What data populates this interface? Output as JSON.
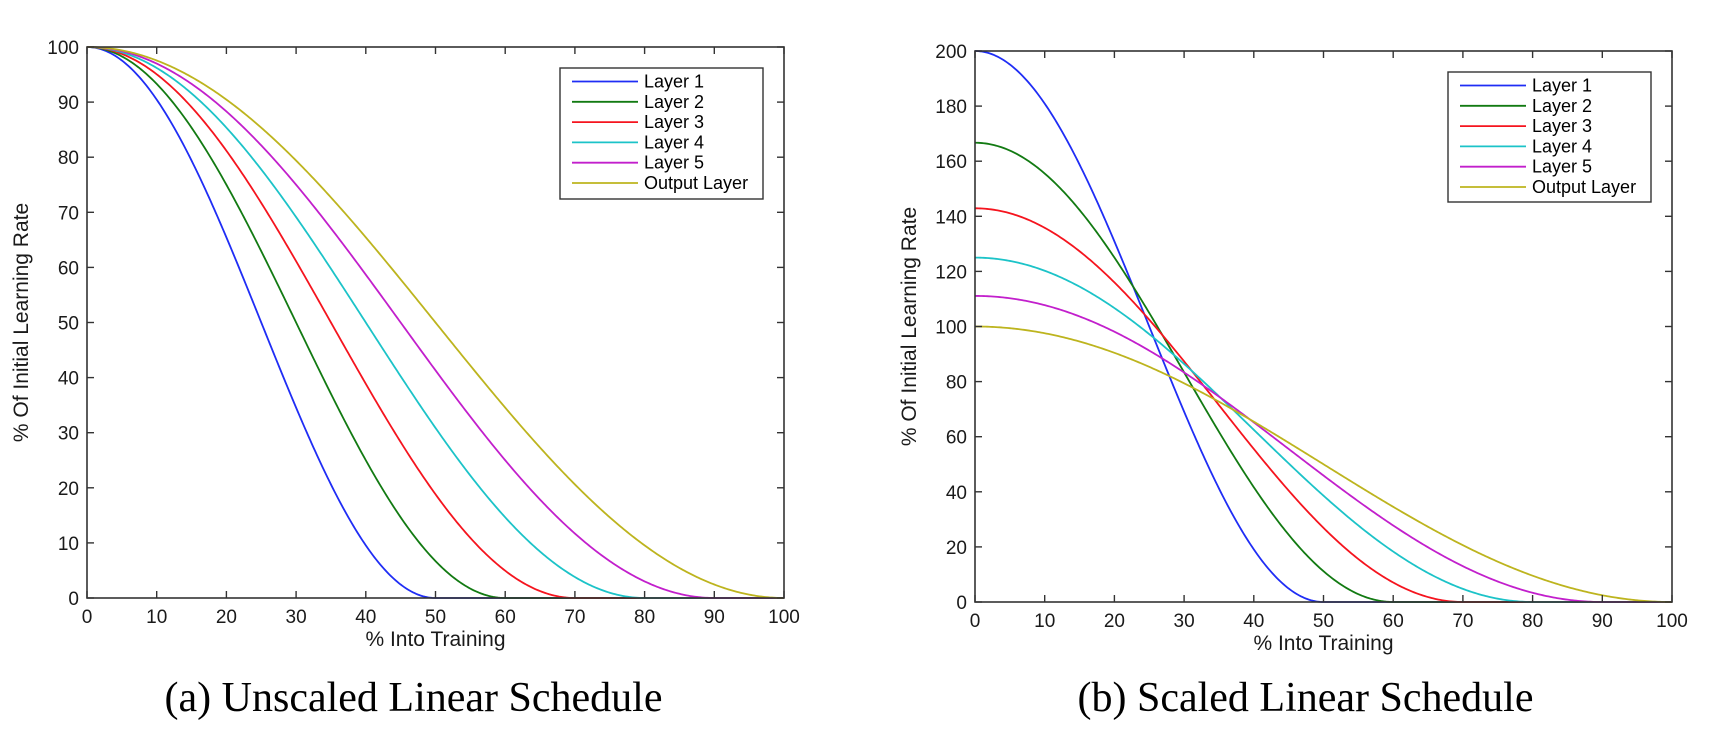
{
  "chart_data": [
    {
      "type": "line",
      "id": "unscaled",
      "caption": "(a) Unscaled Linear Schedule",
      "xlabel": "% Into Training",
      "ylabel": "% Of Initial Learning Rate",
      "xlim": [
        0,
        100
      ],
      "ylim": [
        0,
        100
      ],
      "xticks": [
        0,
        10,
        20,
        30,
        40,
        50,
        60,
        70,
        80,
        90,
        100
      ],
      "yticks": [
        0,
        10,
        20,
        30,
        40,
        50,
        60,
        70,
        80,
        90,
        100
      ],
      "grid": false,
      "legend_position": "top-right",
      "curve_form": "y = peak/2 * (1 + cos(pi * x / end)) for x <= end, else 0",
      "series": [
        {
          "name": "Layer 1",
          "color": "#1f2df5",
          "peak": 100,
          "end": 50
        },
        {
          "name": "Layer 2",
          "color": "#127a12",
          "peak": 100,
          "end": 60
        },
        {
          "name": "Layer 3",
          "color": "#f5141e",
          "peak": 100,
          "end": 70
        },
        {
          "name": "Layer 4",
          "color": "#1cc3c8",
          "peak": 100,
          "end": 80
        },
        {
          "name": "Layer 5",
          "color": "#c21fcc",
          "peak": 100,
          "end": 90
        },
        {
          "name": "Output Layer",
          "color": "#bdb41e",
          "peak": 100,
          "end": 100
        }
      ]
    },
    {
      "type": "line",
      "id": "scaled",
      "caption": "(b) Scaled Linear Schedule",
      "xlabel": "% Into Training",
      "ylabel": "% Of Initial Learning Rate",
      "xlim": [
        0,
        100
      ],
      "ylim": [
        0,
        200
      ],
      "xticks": [
        0,
        10,
        20,
        30,
        40,
        50,
        60,
        70,
        80,
        90,
        100
      ],
      "yticks": [
        0,
        20,
        40,
        60,
        80,
        100,
        120,
        140,
        160,
        180,
        200
      ],
      "grid": false,
      "legend_position": "top-right",
      "curve_form": "y = peak/2 * (1 + cos(pi * x / end)) for x <= end, else 0",
      "series": [
        {
          "name": "Layer 1",
          "color": "#1f2df5",
          "peak": 200,
          "end": 50
        },
        {
          "name": "Layer 2",
          "color": "#127a12",
          "peak": 166.7,
          "end": 60
        },
        {
          "name": "Layer 3",
          "color": "#f5141e",
          "peak": 142.9,
          "end": 70
        },
        {
          "name": "Layer 4",
          "color": "#1cc3c8",
          "peak": 125,
          "end": 80
        },
        {
          "name": "Layer 5",
          "color": "#c21fcc",
          "peak": 111.1,
          "end": 90
        },
        {
          "name": "Output Layer",
          "color": "#bdb41e",
          "peak": 100,
          "end": 100
        }
      ]
    }
  ]
}
